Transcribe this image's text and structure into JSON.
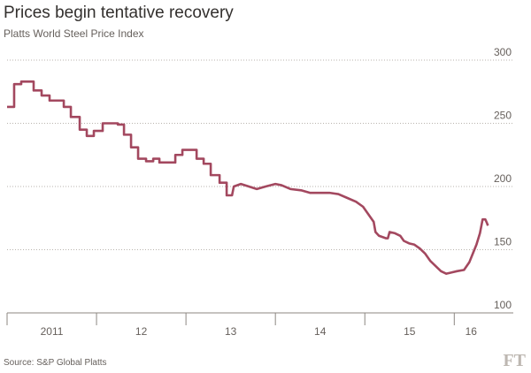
{
  "chart_data": {
    "type": "line",
    "title": "Prices begin tentative recovery",
    "subtitle": "Platts World Steel Price Index",
    "source": "Source: S&P Global Platts",
    "logo": "FT",
    "x": [
      2011.0,
      2011.079,
      2011.079,
      2011.158,
      2011.158,
      2011.297,
      2011.297,
      2011.386,
      2011.386,
      2011.475,
      2011.475,
      2011.634,
      2011.634,
      2011.713,
      2011.713,
      2011.812,
      2011.812,
      2011.891,
      2011.891,
      2011.97,
      2011.97,
      2012.069,
      2012.069,
      2012.238,
      2012.238,
      2012.307,
      2012.307,
      2012.386,
      2012.386,
      2012.465,
      2012.465,
      2012.554,
      2012.554,
      2012.634,
      2012.634,
      2012.703,
      2012.703,
      2012.881,
      2012.881,
      2012.96,
      2012.96,
      2013.119,
      2013.119,
      2013.198,
      2013.198,
      2013.277,
      2013.277,
      2013.376,
      2013.376,
      2013.455,
      2013.455,
      2013.515,
      2013.535,
      2013.614,
      2013.703,
      2013.792,
      2013.891,
      2014.0,
      2014.069,
      2014.168,
      2014.287,
      2014.386,
      2014.485,
      2014.604,
      2014.703,
      2014.802,
      2014.901,
      2014.98,
      2015.04,
      2015.099,
      2015.119,
      2015.158,
      2015.238,
      2015.257,
      2015.277,
      2015.337,
      2015.396,
      2015.436,
      2015.495,
      2015.554,
      2015.614,
      2015.673,
      2015.733,
      2015.792,
      2015.851,
      2015.911,
      2015.97,
      2016.03,
      2016.109,
      2016.168,
      2016.208,
      2016.248,
      2016.287,
      2016.317,
      2016.347,
      2016.366,
      2016.376
    ],
    "series": [
      {
        "color": "#a3485f",
        "values": [
          263,
          263,
          281,
          281,
          283,
          283,
          276,
          276,
          272,
          272,
          268,
          268,
          263,
          263,
          255,
          255,
          245,
          245,
          240,
          240,
          244,
          244,
          250,
          250,
          249,
          249,
          241,
          241,
          231,
          231,
          222,
          222,
          220,
          220,
          222,
          222,
          219,
          219,
          225,
          225,
          229,
          229,
          222,
          222,
          218,
          218,
          209,
          209,
          203,
          203,
          193,
          193,
          200,
          202,
          200,
          198,
          200,
          202,
          201,
          198,
          197,
          195,
          195,
          195,
          194,
          191,
          188,
          184,
          178,
          172,
          164,
          161,
          159,
          159,
          164,
          163,
          161,
          157,
          155,
          154,
          151,
          147,
          141,
          137,
          133,
          131,
          132,
          133,
          134,
          140,
          147,
          154,
          163,
          174,
          174,
          171,
          169
        ]
      }
    ],
    "xlim": [
      2011,
      2016.66
    ],
    "xticks": [
      {
        "value": 2011,
        "label": "2011"
      },
      {
        "value": 2012,
        "label": "12"
      },
      {
        "value": 2013,
        "label": "13"
      },
      {
        "value": 2014,
        "label": "14"
      },
      {
        "value": 2015,
        "label": "15"
      },
      {
        "value": 2016,
        "label": "16"
      }
    ],
    "ylim": [
      100,
      300
    ],
    "yticks": [
      100,
      150,
      200,
      250,
      300
    ],
    "grid": true
  }
}
